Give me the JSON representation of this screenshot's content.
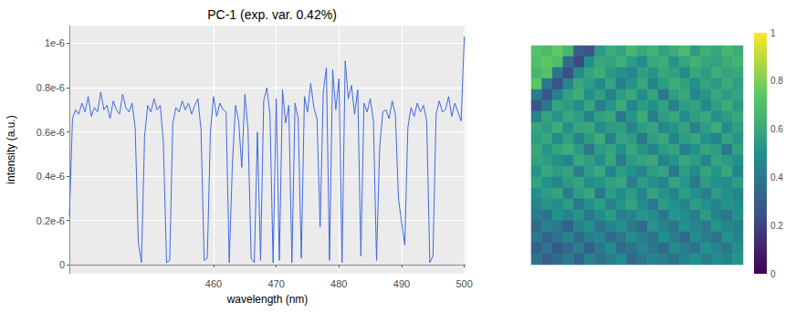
{
  "chart_data": [
    {
      "type": "line",
      "title": "PC-1 (exp. var. 0.42%)",
      "x_label": "wavelength (nm)",
      "y_label": "intensity (a.u.)",
      "color": "#4169e1",
      "grid": true,
      "xlim": [
        437,
        500.2
      ],
      "ylim": [
        -4e-08,
        1.08e-06
      ],
      "xticks": [
        460,
        470,
        480,
        490,
        500
      ],
      "yticks": [
        0,
        {
          "value": 2e-07,
          "label": "0.2e-6"
        },
        {
          "value": 4e-07,
          "label": "0.4e-6"
        },
        {
          "value": 6e-07,
          "label": "0.6e-6"
        },
        {
          "value": 8e-07,
          "label": "0.8e-6"
        },
        {
          "value": 1e-06,
          "label": "1e-6"
        }
      ],
      "x": [
        437,
        437.5,
        438,
        438.5,
        439,
        439.5,
        440,
        440.5,
        441,
        441.5,
        442,
        442.5,
        443,
        443.5,
        444,
        444.5,
        445,
        445.5,
        446,
        446.5,
        447,
        447.5,
        448,
        448.5,
        449,
        449.5,
        450,
        450.5,
        451,
        451.5,
        452,
        452.5,
        453,
        453.5,
        454,
        454.5,
        455,
        455.5,
        456,
        456.5,
        457,
        457.5,
        458,
        458.5,
        459,
        459.5,
        460,
        460.5,
        461,
        461.5,
        462,
        462.5,
        463,
        463.5,
        464,
        464.5,
        465,
        465.5,
        466,
        466.5,
        467,
        467.5,
        468,
        468.5,
        469,
        469.5,
        470,
        470.5,
        471,
        471.5,
        472,
        472.5,
        473,
        473.5,
        474,
        474.5,
        475,
        475.5,
        476,
        476.5,
        477,
        477.5,
        478,
        478.5,
        479,
        479.5,
        480,
        480.5,
        481,
        481.5,
        482,
        482.5,
        483,
        483.5,
        484,
        484.5,
        485,
        485.5,
        486,
        486.5,
        487,
        487.5,
        488,
        488.5,
        489,
        489.5,
        490,
        490.5,
        491,
        491.5,
        492,
        492.5,
        493,
        493.5,
        494,
        494.5,
        495,
        495.5,
        496,
        496.5,
        497,
        497.5,
        498,
        498.5,
        499,
        499.5,
        500
      ],
      "values": [
        2.2e-07,
        6.6e-07,
        7e-07,
        6.8e-07,
        7.3e-07,
        6.9e-07,
        7.6e-07,
        6.7e-07,
        7.1e-07,
        6.9e-07,
        7.8e-07,
        7e-07,
        7.2e-07,
        6.6e-07,
        7.4e-07,
        7e-07,
        6.8e-07,
        7.7e-07,
        7.1e-07,
        6.9e-07,
        7.3e-07,
        6.2e-07,
        1e-07,
        1e-08,
        5.8e-07,
        7.2e-07,
        6.9e-07,
        7.5e-07,
        7e-07,
        7.2e-07,
        5.5e-07,
        1e-08,
        2e-08,
        6.4e-07,
        7.1e-07,
        6.9e-07,
        7.4e-07,
        7e-07,
        7.3e-07,
        6.8e-07,
        7.2e-07,
        7.5e-07,
        6.1e-07,
        2e-08,
        3e-08,
        6e-07,
        7.6e-07,
        6.7e-07,
        7.3e-07,
        7e-07,
        6.9e-07,
        1e-08,
        4.5e-07,
        7.2e-07,
        6.5e-07,
        4.4e-07,
        7.7e-07,
        6.1e-07,
        3e-08,
        1e-08,
        6e-07,
        2e-08,
        7.4e-07,
        8e-07,
        6.8e-07,
        1e-08,
        7.5e-07,
        2e-08,
        7.9e-07,
        6.4e-07,
        7.2e-07,
        1e-08,
        7.3e-07,
        6.6e-07,
        3e-08,
        7.6e-07,
        6.9e-07,
        8.2e-07,
        7.1e-07,
        6.6e-07,
        1.7e-07,
        7.8e-07,
        8.9e-07,
        2e-08,
        8.8e-07,
        7e-07,
        8.4e-07,
        1e-08,
        9.2e-07,
        7.5e-07,
        8.1e-07,
        6.8e-07,
        7.9e-07,
        4e-08,
        7.3e-07,
        6.9e-07,
        7.5e-07,
        6.5e-07,
        2e-08,
        5.3e-07,
        6.9e-07,
        7e-07,
        6.6e-07,
        7.4e-07,
        6.8e-07,
        3e-07,
        1.9e-07,
        9e-08,
        6.2e-07,
        7.1e-07,
        6.7e-07,
        7.3e-07,
        6.9e-07,
        7.2e-07,
        6.5e-07,
        1e-08,
        4e-08,
        6.8e-07,
        7.4e-07,
        6.9e-07,
        7e-07,
        7.6e-07,
        6.7e-07,
        7.3e-07,
        6.9e-07,
        6.5e-07,
        1.03e-06
      ]
    },
    {
      "type": "heatmap",
      "tick_labels": false,
      "color_range": [
        0,
        1
      ],
      "color_ticks": [
        0,
        0.2,
        0.4,
        0.6,
        0.8,
        1
      ],
      "cells": [
        [
          0.72,
          0.68,
          0.75,
          0.66,
          0.3,
          0.25,
          0.55,
          0.62,
          0.58,
          0.66,
          0.6,
          0.64,
          0.57,
          0.62,
          0.68,
          0.55,
          0.63,
          0.6,
          0.66,
          0.62
        ],
        [
          0.7,
          0.74,
          0.69,
          0.35,
          0.22,
          0.5,
          0.6,
          0.57,
          0.63,
          0.55,
          0.48,
          0.6,
          0.62,
          0.52,
          0.58,
          0.64,
          0.59,
          0.57,
          0.61,
          0.65
        ],
        [
          0.66,
          0.71,
          0.38,
          0.24,
          0.48,
          0.58,
          0.62,
          0.54,
          0.5,
          0.45,
          0.56,
          0.52,
          0.6,
          0.57,
          0.49,
          0.6,
          0.55,
          0.62,
          0.58,
          0.6
        ],
        [
          0.73,
          0.4,
          0.25,
          0.45,
          0.6,
          0.55,
          0.47,
          0.58,
          0.42,
          0.52,
          0.6,
          0.45,
          0.55,
          0.62,
          0.57,
          0.5,
          0.58,
          0.54,
          0.61,
          0.56
        ],
        [
          0.42,
          0.27,
          0.44,
          0.57,
          0.62,
          0.5,
          0.56,
          0.44,
          0.55,
          0.6,
          0.48,
          0.58,
          0.4,
          0.56,
          0.6,
          0.45,
          0.52,
          0.6,
          0.55,
          0.58
        ],
        [
          0.26,
          0.4,
          0.58,
          0.55,
          0.48,
          0.6,
          0.42,
          0.52,
          0.62,
          0.45,
          0.55,
          0.5,
          0.57,
          0.44,
          0.55,
          0.58,
          0.47,
          0.56,
          0.62,
          0.54
        ],
        [
          0.45,
          0.57,
          0.52,
          0.6,
          0.55,
          0.45,
          0.57,
          0.6,
          0.4,
          0.52,
          0.62,
          0.42,
          0.55,
          0.6,
          0.48,
          0.56,
          0.6,
          0.5,
          0.55,
          0.59
        ],
        [
          0.58,
          0.55,
          0.62,
          0.5,
          0.58,
          0.6,
          0.48,
          0.55,
          0.56,
          0.44,
          0.55,
          0.58,
          0.46,
          0.52,
          0.58,
          0.44,
          0.55,
          0.62,
          0.48,
          0.56
        ],
        [
          0.55,
          0.6,
          0.48,
          0.57,
          0.45,
          0.55,
          0.62,
          0.43,
          0.58,
          0.55,
          0.4,
          0.56,
          0.6,
          0.45,
          0.55,
          0.6,
          0.5,
          0.45,
          0.58,
          0.52
        ],
        [
          0.6,
          0.52,
          0.58,
          0.62,
          0.55,
          0.4,
          0.55,
          0.58,
          0.5,
          0.6,
          0.52,
          0.45,
          0.55,
          0.58,
          0.42,
          0.5,
          0.58,
          0.55,
          0.4,
          0.57
        ],
        [
          0.57,
          0.55,
          0.5,
          0.45,
          0.6,
          0.56,
          0.48,
          0.6,
          0.42,
          0.55,
          0.58,
          0.6,
          0.44,
          0.52,
          0.6,
          0.55,
          0.45,
          0.58,
          0.55,
          0.5
        ],
        [
          0.52,
          0.6,
          0.55,
          0.58,
          0.42,
          0.55,
          0.6,
          0.45,
          0.55,
          0.5,
          0.45,
          0.55,
          0.58,
          0.4,
          0.55,
          0.48,
          0.58,
          0.52,
          0.6,
          0.45
        ],
        [
          0.58,
          0.5,
          0.45,
          0.55,
          0.58,
          0.48,
          0.52,
          0.57,
          0.6,
          0.42,
          0.55,
          0.5,
          0.45,
          0.58,
          0.52,
          0.4,
          0.55,
          0.5,
          0.48,
          0.55
        ],
        [
          0.5,
          0.55,
          0.58,
          0.42,
          0.55,
          0.6,
          0.4,
          0.55,
          0.48,
          0.55,
          0.45,
          0.58,
          0.52,
          0.45,
          0.55,
          0.5,
          0.42,
          0.55,
          0.5,
          0.45
        ],
        [
          0.45,
          0.52,
          0.48,
          0.55,
          0.4,
          0.5,
          0.55,
          0.45,
          0.52,
          0.58,
          0.48,
          0.4,
          0.55,
          0.5,
          0.45,
          0.55,
          0.5,
          0.45,
          0.52,
          0.48
        ],
        [
          0.42,
          0.38,
          0.5,
          0.45,
          0.52,
          0.4,
          0.48,
          0.55,
          0.42,
          0.45,
          0.52,
          0.48,
          0.4,
          0.52,
          0.48,
          0.42,
          0.55,
          0.45,
          0.4,
          0.5
        ],
        [
          0.35,
          0.45,
          0.4,
          0.3,
          0.45,
          0.5,
          0.38,
          0.45,
          0.5,
          0.4,
          0.35,
          0.52,
          0.45,
          0.38,
          0.5,
          0.45,
          0.4,
          0.52,
          0.45,
          0.42
        ],
        [
          0.4,
          0.32,
          0.38,
          0.45,
          0.35,
          0.42,
          0.45,
          0.35,
          0.4,
          0.48,
          0.42,
          0.38,
          0.5,
          0.42,
          0.35,
          0.48,
          0.42,
          0.38,
          0.5,
          0.45
        ],
        [
          0.3,
          0.38,
          0.28,
          0.35,
          0.42,
          0.3,
          0.4,
          0.48,
          0.35,
          0.38,
          0.45,
          0.4,
          0.35,
          0.48,
          0.42,
          0.38,
          0.5,
          0.45,
          0.4,
          0.48
        ],
        [
          0.38,
          0.3,
          0.35,
          0.4,
          0.32,
          0.45,
          0.38,
          0.42,
          0.48,
          0.35,
          0.4,
          0.45,
          0.42,
          0.38,
          0.45,
          0.5,
          0.42,
          0.48,
          0.45,
          0.52
        ]
      ]
    }
  ]
}
